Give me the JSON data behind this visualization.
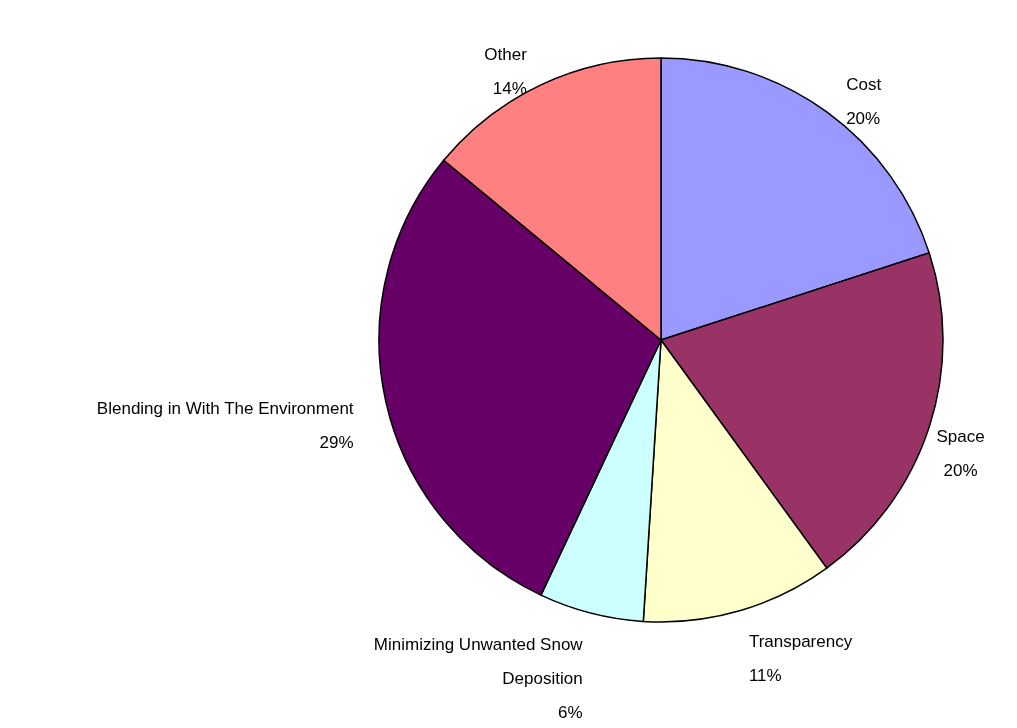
{
  "chart_data": {
    "type": "pie",
    "categories": [
      "Cost",
      "Space",
      "Transparency",
      "Minimizing Unwanted Snow Deposition",
      "Blending in With The Environment",
      "Other"
    ],
    "values": [
      20,
      20,
      11,
      6,
      29,
      14
    ],
    "value_labels": [
      "20%",
      "20%",
      "11%",
      "6%",
      "29%",
      "14%"
    ],
    "colors": [
      "#9999ff",
      "#993366",
      "#ffffcc",
      "#ccffff",
      "#660066",
      "#ff8080"
    ]
  }
}
